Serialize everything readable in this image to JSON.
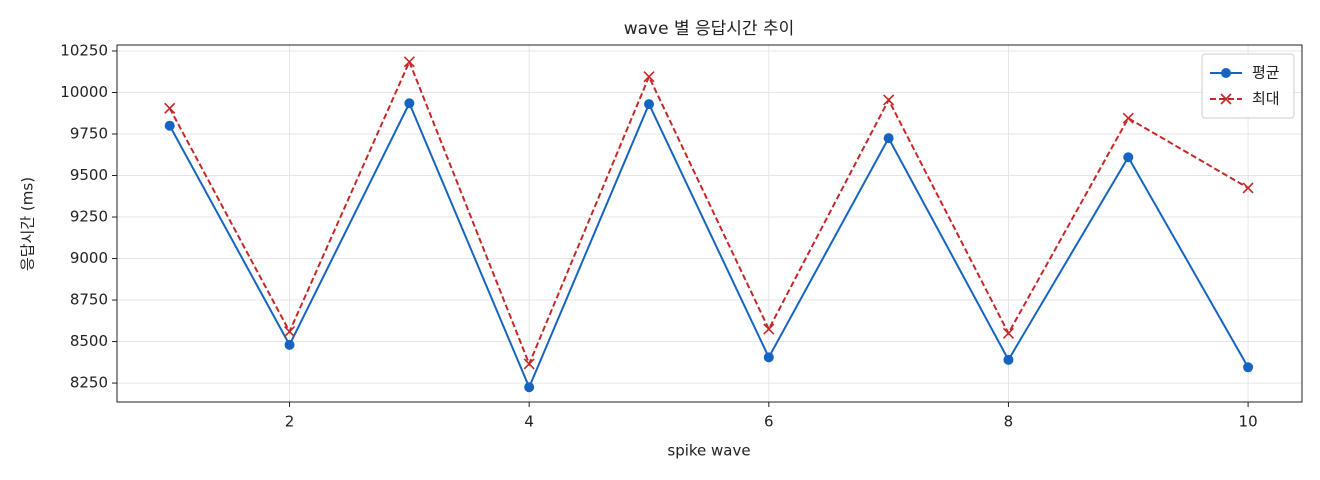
{
  "chart_data": {
    "type": "line",
    "title": "wave 별 응답시간 추이",
    "x_label": "spike wave",
    "y_label": "응답시간 (ms)",
    "x": [
      1,
      2,
      3,
      4,
      5,
      6,
      7,
      8,
      9,
      10
    ],
    "series": [
      {
        "name": "평균",
        "color": "#1565c0",
        "marker": "o",
        "linestyle": "solid",
        "values": [
          9800,
          8480,
          9935,
          8225,
          9930,
          8405,
          9725,
          8390,
          9610,
          8345
        ]
      },
      {
        "name": "최대",
        "color": "#c62828",
        "marker": "x",
        "linestyle": "dashed",
        "values": [
          9905,
          8560,
          10185,
          8365,
          10095,
          8575,
          9955,
          8550,
          9845,
          9425
        ]
      }
    ],
    "xlim": [
      0.56,
      10.45
    ],
    "xticks": [
      2,
      4,
      6,
      8,
      10
    ],
    "ylim": [
      8136,
      10286
    ],
    "yticks": [
      8250,
      8500,
      8750,
      9000,
      9250,
      9500,
      9750,
      10000,
      10250
    ],
    "grid": true,
    "legend": "upper right"
  }
}
